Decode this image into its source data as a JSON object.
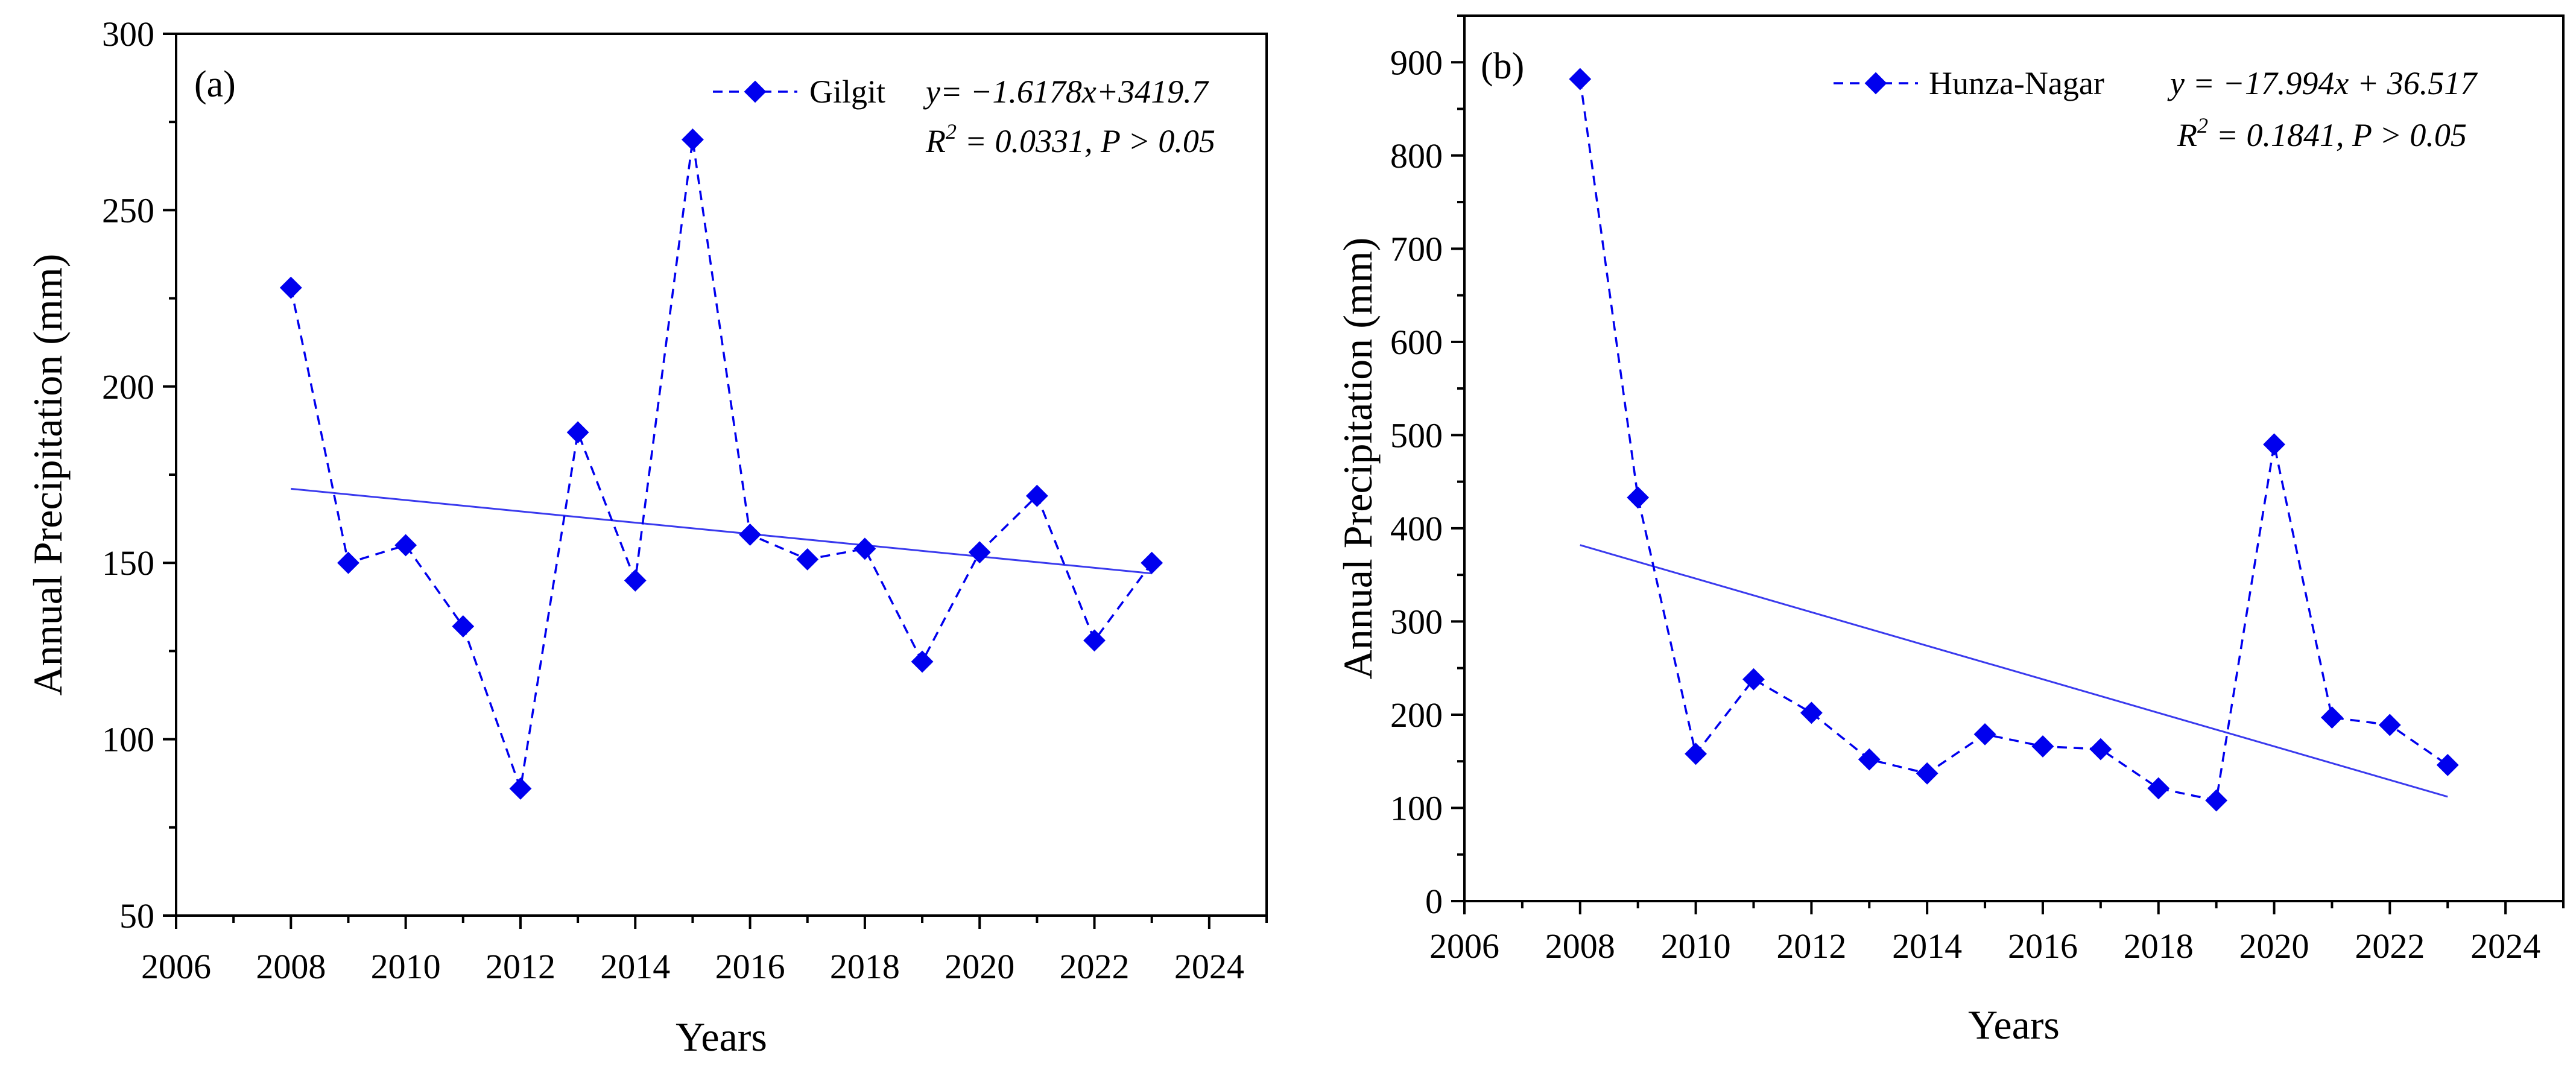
{
  "chart_data": [
    {
      "type": "line",
      "panel_label": "(a)",
      "xlabel": "Years",
      "ylabel": "Annual Precipitation (mm)",
      "xlim": [
        2006,
        2025
      ],
      "ylim": [
        50,
        300
      ],
      "xticks": [
        2006,
        2008,
        2010,
        2012,
        2014,
        2016,
        2018,
        2020,
        2022,
        2024
      ],
      "yticks": [
        50,
        100,
        150,
        200,
        250,
        300
      ],
      "series": [
        {
          "name": "Gilgit",
          "x": [
            2008,
            2009,
            2010,
            2011,
            2012,
            2013,
            2014,
            2015,
            2016,
            2017,
            2018,
            2019,
            2020,
            2021,
            2022,
            2023
          ],
          "values": [
            228,
            150,
            155,
            132,
            86,
            187,
            145,
            270,
            158,
            151,
            154,
            122,
            153,
            169,
            128,
            150
          ],
          "color": "#0000ee",
          "line_style": "dashed",
          "marker": "diamond"
        }
      ],
      "trend": {
        "x": [
          2008,
          2023
        ],
        "y": [
          171,
          147
        ],
        "color": "#3a3aee"
      },
      "equation": "y= −1.6178x+3419.7",
      "stats": {
        "r_symbol": "R",
        "exponent": "2",
        "rest": " = 0.0331, P > 0.05"
      }
    },
    {
      "type": "line",
      "panel_label": "(b)",
      "xlabel": "Years",
      "ylabel": "Annual Precipitation (mm)",
      "xlim": [
        2006,
        2025
      ],
      "ylim": [
        0,
        950
      ],
      "xticks": [
        2006,
        2008,
        2010,
        2012,
        2014,
        2016,
        2018,
        2020,
        2022,
        2024
      ],
      "yticks": [
        0,
        100,
        200,
        300,
        400,
        500,
        600,
        700,
        800,
        900
      ],
      "series": [
        {
          "name": "Hunza-Nagar",
          "x": [
            2008,
            2009,
            2010,
            2011,
            2012,
            2013,
            2014,
            2015,
            2016,
            2017,
            2018,
            2019,
            2020,
            2021,
            2022,
            2023
          ],
          "values": [
            882,
            433,
            158,
            238,
            202,
            152,
            137,
            179,
            166,
            163,
            121,
            108,
            490,
            197,
            189,
            146
          ],
          "color": "#0000ee",
          "line_style": "dashed",
          "marker": "diamond"
        }
      ],
      "trend": {
        "x": [
          2008,
          2023
        ],
        "y": [
          382,
          112
        ],
        "color": "#3a3aee"
      },
      "equation": "y = −17.994x + 36.517",
      "stats": {
        "r_symbol": "R",
        "exponent": "2",
        "rest": " = 0.1841, P > 0.05"
      }
    }
  ]
}
